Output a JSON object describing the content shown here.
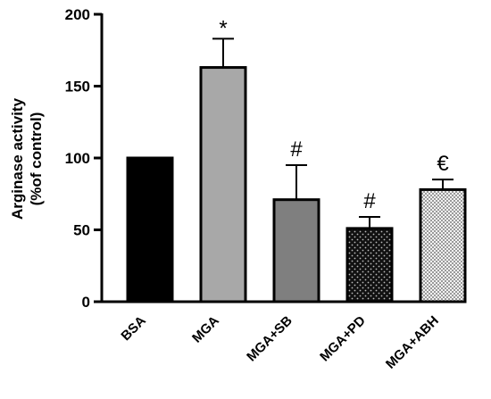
{
  "chart_data": {
    "type": "bar",
    "ylabel_lines": [
      "Arginase activity",
      "(%of control)"
    ],
    "ylim": [
      0,
      200
    ],
    "yticks": [
      0,
      50,
      100,
      150,
      200
    ],
    "categories": [
      "BSA",
      "MGA",
      "MGA+SB",
      "MGA+PD",
      "MGA+ABH"
    ],
    "values": [
      100,
      163,
      71,
      51,
      78
    ],
    "errors": [
      0,
      20,
      24,
      8,
      7
    ],
    "annotations": [
      "",
      "*",
      "#",
      "#",
      "€"
    ],
    "fill_styles": [
      "solid-black",
      "solid-light-gray",
      "solid-dark-gray",
      "dotted-black",
      "checker-light"
    ],
    "colors": {
      "bsa": "#000000",
      "mga": "#a8a8a8",
      "mga_sb": "#7f7f7f",
      "mga_pd": "#111111",
      "mga_abh": "#d0d0d0"
    }
  }
}
